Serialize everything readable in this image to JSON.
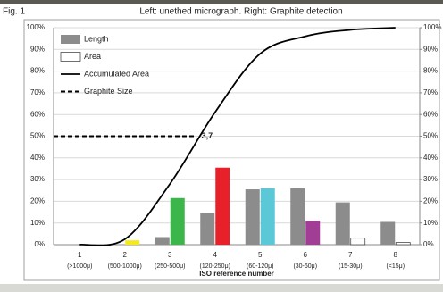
{
  "figure_label": "Fig. 1",
  "caption": "Left: unethed micrograph. Right: Graphite detection",
  "chart_data": {
    "type": "bar",
    "x_label": "ISO reference number",
    "categories": [
      "1",
      "2",
      "3",
      "4",
      "5",
      "6",
      "7",
      "8"
    ],
    "category_sublabels": [
      "(>1000μ)",
      "(500-1000μ)",
      "(250-500μ)",
      "(120-250μ)",
      "(60-120μ)",
      "(30-60μ)",
      "(15-30μ)",
      "(<15μ)"
    ],
    "series": [
      {
        "name": "Length",
        "color": "#8c8c8c",
        "values": [
          0,
          0,
          3.5,
          14.5,
          25.5,
          26,
          19.5,
          10.5
        ]
      },
      {
        "name": "Area",
        "color": "#ffffff",
        "colors": [
          "#ffffff",
          "#f2ea1c",
          "#3cb54a",
          "#e8202a",
          "#5bc8d8",
          "#a23d96",
          "#ffffff",
          "#ffffff"
        ],
        "values": [
          0,
          2,
          21.5,
          35.5,
          26,
          11,
          3,
          1
        ]
      },
      {
        "name": "Accumulated Area",
        "type": "line",
        "color": "#000000",
        "values": [
          0,
          2.5,
          28,
          61,
          88,
          96,
          99,
          100
        ]
      }
    ],
    "reference_line": {
      "name": "Graphite Size",
      "value": 50,
      "x": 3.7,
      "label": "3,7"
    },
    "ylim": [
      0,
      100
    ],
    "yticks": [
      {
        "value": 0,
        "label": "0%"
      },
      {
        "value": 10,
        "label": "10%"
      },
      {
        "value": 20,
        "label": "20%"
      },
      {
        "value": 30,
        "label": "30%"
      },
      {
        "value": 40,
        "label": "40%"
      },
      {
        "value": 50,
        "label": "50%"
      },
      {
        "value": 60,
        "label": "60%"
      },
      {
        "value": 70,
        "label": "70%"
      },
      {
        "value": 80,
        "label": "80%"
      },
      {
        "value": 90,
        "label": "90%"
      },
      {
        "value": 100,
        "label": "100%"
      }
    ],
    "y2lim": [
      0,
      100
    ],
    "y2ticks": [
      {
        "value": 0,
        "label": "0%"
      },
      {
        "value": 10,
        "label": "10%"
      },
      {
        "value": 20,
        "label": "20%"
      },
      {
        "value": 30,
        "label": "30%"
      },
      {
        "value": 40,
        "label": "40%"
      },
      {
        "value": 50,
        "label": "50%"
      },
      {
        "value": 60,
        "label": "60%"
      },
      {
        "value": 70,
        "label": "70%"
      },
      {
        "value": 80,
        "label": "80%"
      },
      {
        "value": 90,
        "label": "90%"
      },
      {
        "value": 100,
        "label": "100%"
      }
    ],
    "grid": true
  }
}
